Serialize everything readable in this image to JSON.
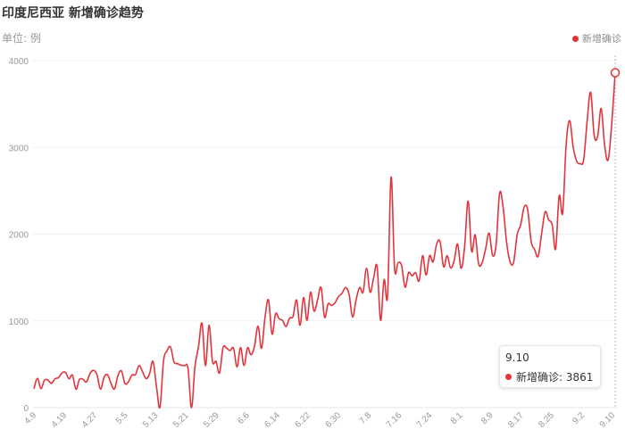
{
  "colors": {
    "series": "#e3343c",
    "grid": "#efefef",
    "axis_text": "#999999"
  },
  "chart_data": {
    "type": "line",
    "title": "印度尼西亚 新增确诊趋势",
    "unit_label": "单位: 例",
    "legend": [
      "新增确诊"
    ],
    "legend_position": "top-right",
    "ylim": [
      0,
      4000
    ],
    "y_ticks": [
      "0",
      "1000",
      "2000",
      "3000",
      "4000"
    ],
    "x_ticks": [
      "4.9",
      "4.19",
      "4.27",
      "5.5",
      "5.13",
      "5.21",
      "5.29",
      "6.6",
      "6.14",
      "6.22",
      "6.30",
      "7.8",
      "7.16",
      "7.24",
      "8.1",
      "8.9",
      "8.17",
      "8.25",
      "9.2",
      "9.10"
    ],
    "grid": true,
    "series": [
      {
        "name": "新增确诊",
        "values": [
          218,
          337,
          219,
          316,
          317,
          280,
          331,
          346,
          399,
          407,
          333,
          375,
          212,
          325,
          327,
          297,
          391,
          430,
          380,
          213,
          347,
          380,
          282,
          216,
          370,
          423,
          278,
          299,
          377,
          380,
          484,
          417,
          335,
          387,
          533,
          243,
          5,
          533,
          654,
          700,
          528,
          508,
          489,
          484,
          454,
          0,
          478,
          700,
          973,
          484,
          950,
          531,
          533,
          400,
          690,
          687,
          658,
          684,
          470,
          693,
          485,
          689,
          609,
          711,
          939,
          684,
          1043,
          1241,
          848,
          1082,
          1025,
          1006,
          935,
          1031,
          1051,
          1241,
          949,
          1269,
          1007,
          1331,
          1113,
          1240,
          1385,
          1043,
          1195,
          1178,
          1209,
          1282,
          1318,
          1385,
          1306,
          1046,
          1241,
          1385,
          1331,
          1607,
          1331,
          1491,
          1627,
          1007,
          1475,
          1293,
          2657,
          1607,
          1671,
          1639,
          1388,
          1556,
          1519,
          1555,
          1462,
          1752,
          1528,
          1752,
          1681,
          1882,
          1912,
          1624,
          1752,
          1611,
          1693,
          1886,
          1607,
          1855,
          2381,
          1805,
          1992,
          1659,
          1671,
          1831,
          2012,
          1754,
          1883,
          2473,
          2307,
          1902,
          1679,
          1678,
          1991,
          2107,
          2310,
          2282,
          1918,
          1822,
          1744,
          2006,
          2257,
          2164,
          2109,
          1830,
          2441,
          2245,
          3036,
          3308,
          3003,
          2842,
          2813,
          2858,
          3306,
          3635,
          3141,
          3128,
          3448,
          3021,
          2858,
          3269,
          3861
        ]
      }
    ]
  },
  "tooltip": {
    "date": "9.10",
    "series": "新增确诊",
    "value_text": "3861"
  },
  "tooltip_label": "新增确诊: 3861"
}
